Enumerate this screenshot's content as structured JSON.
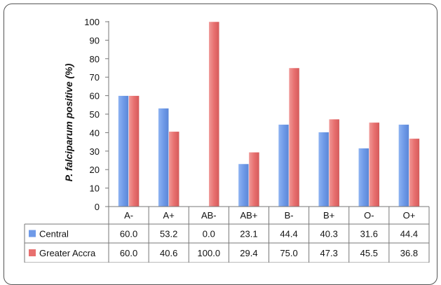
{
  "chart_data": {
    "type": "bar",
    "ylabel": "P. falciparum positive (%)",
    "ylim": [
      0,
      100
    ],
    "yticks": [
      0,
      10,
      20,
      30,
      40,
      50,
      60,
      70,
      80,
      90,
      100
    ],
    "grid": false,
    "categories": [
      "A-",
      "A+",
      "AB-",
      "AB+",
      "B-",
      "B+",
      "O-",
      "O+"
    ],
    "series": [
      {
        "name": "Central",
        "values": [
          60.0,
          53.2,
          0.0,
          23.1,
          44.4,
          40.3,
          31.6,
          44.4
        ],
        "labels": [
          "60.0",
          "53.2",
          "0.0",
          "23.1",
          "44.4",
          "40.3",
          "31.6",
          "44.4"
        ],
        "color": "#6f9ae8"
      },
      {
        "name": "Greater Accra",
        "values": [
          60.0,
          40.6,
          100.0,
          29.4,
          75.0,
          47.3,
          45.5,
          36.8
        ],
        "labels": [
          "60.0",
          "40.6",
          "100.0",
          "29.4",
          "75.0",
          "47.3",
          "45.5",
          "36.8"
        ],
        "color": "#e8706f"
      }
    ],
    "legend": "data-table"
  }
}
